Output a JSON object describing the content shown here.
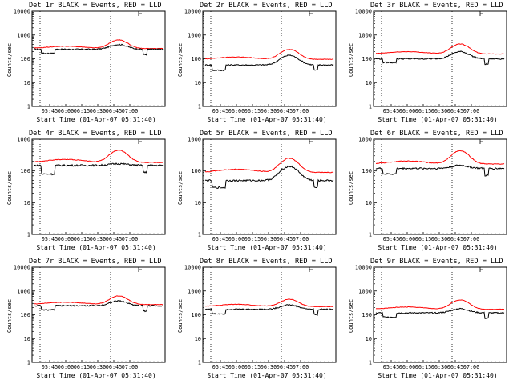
{
  "colors": {
    "events": "#000000",
    "lld": "#ff0000",
    "frame": "#000000",
    "background": "#ffffff"
  },
  "chart_data": [
    {
      "type": "line",
      "title": "Det 1r BLACK = Events, RED = LLD",
      "xlabel": "Start Time (01-Apr-07 05:31:40)",
      "ylabel": "Counts/sec",
      "yscale": "log",
      "ylim": [
        1,
        10000
      ],
      "yticks": [
        1,
        10,
        100,
        1000,
        10000
      ],
      "yticklabels": [
        "1",
        "10",
        "100",
        "1000",
        "10000"
      ],
      "xticklabels": [
        "05:45",
        "06:00",
        "06:15",
        "06:30",
        "06:45",
        "07:00"
      ],
      "events_plateau": 170,
      "events_base": 250,
      "events_peak": 400,
      "lld_base": 270,
      "lld_peak": 620
    },
    {
      "type": "line",
      "title": "Det 2r BLACK = Events, RED = LLD",
      "xlabel": "Start Time (01-Apr-07 05:31:40)",
      "ylabel": "Counts/sec",
      "yscale": "log",
      "ylim": [
        1,
        10000
      ],
      "yticks": [
        1,
        10,
        100,
        1000,
        10000
      ],
      "yticklabels": [
        "1",
        "10",
        "100",
        "1000",
        "10000"
      ],
      "xticklabels": [
        "05:45",
        "06:00",
        "06:15",
        "06:30",
        "06:45",
        "07:00"
      ],
      "events_plateau": 33,
      "events_base": 55,
      "events_peak": 140,
      "lld_base": 95,
      "lld_peak": 250
    },
    {
      "type": "line",
      "title": "Det 3r BLACK = Events, RED = LLD",
      "xlabel": "Start Time (01-Apr-07 05:31:40)",
      "ylabel": "Counts/sec",
      "yscale": "log",
      "ylim": [
        1,
        10000
      ],
      "yticks": [
        1,
        10,
        100,
        1000,
        10000
      ],
      "yticklabels": [
        "1",
        "10",
        "100",
        "1000",
        "10000"
      ],
      "xticklabels": [
        "05:45",
        "06:00",
        "06:15",
        "06:30",
        "06:45",
        "07:00"
      ],
      "events_plateau": 70,
      "events_base": 100,
      "events_peak": 200,
      "lld_base": 160,
      "lld_peak": 420
    },
    {
      "type": "line",
      "title": "Det 4r BLACK = Events, RED = LLD",
      "xlabel": "Start Time (01-Apr-07 05:31:40)",
      "ylabel": "Counts/sec",
      "yscale": "log",
      "ylim": [
        1,
        1000
      ],
      "yticks": [
        1,
        10,
        100,
        1000
      ],
      "yticklabels": [
        "1",
        "10",
        "100",
        "1000"
      ],
      "xticklabels": [
        "05:45",
        "06:00",
        "06:15",
        "06:30",
        "06:45",
        "07:00"
      ],
      "events_plateau": 80,
      "events_base": 150,
      "events_peak": 170,
      "lld_base": 185,
      "lld_peak": 450
    },
    {
      "type": "line",
      "title": "Det 5r BLACK = Events, RED = LLD",
      "xlabel": "Start Time (01-Apr-07 05:31:40)",
      "ylabel": "Counts/sec",
      "yscale": "log",
      "ylim": [
        1,
        1000
      ],
      "yticks": [
        1,
        10,
        100,
        1000
      ],
      "yticklabels": [
        "1",
        "10",
        "100",
        "1000"
      ],
      "xticklabels": [
        "05:45",
        "06:00",
        "06:15",
        "06:30",
        "06:45",
        "07:00"
      ],
      "events_plateau": 30,
      "events_base": 50,
      "events_peak": 140,
      "lld_base": 90,
      "lld_peak": 250
    },
    {
      "type": "line",
      "title": "Det 6r BLACK = Events, RED = LLD",
      "xlabel": "Start Time (01-Apr-07 05:31:40)",
      "ylabel": "Counts/sec",
      "yscale": "log",
      "ylim": [
        1,
        1000
      ],
      "yticks": [
        1,
        10,
        100,
        1000
      ],
      "yticklabels": [
        "1",
        "10",
        "100",
        "1000"
      ],
      "xticklabels": [
        "05:45",
        "06:00",
        "06:15",
        "06:30",
        "06:45",
        "07:00"
      ],
      "events_plateau": 80,
      "events_base": 120,
      "events_peak": 150,
      "lld_base": 165,
      "lld_peak": 430
    },
    {
      "type": "line",
      "title": "Det 7r BLACK = Events, RED = LLD",
      "xlabel": "Start Time (01-Apr-07 05:31:40)",
      "ylabel": "Counts/sec",
      "yscale": "log",
      "ylim": [
        1,
        10000
      ],
      "yticks": [
        1,
        10,
        100,
        1000,
        10000
      ],
      "yticklabels": [
        "1",
        "10",
        "100",
        "1000",
        "10000"
      ],
      "xticklabels": [
        "05:45",
        "06:00",
        "06:15",
        "06:30",
        "06:45",
        "07:00"
      ],
      "events_plateau": 160,
      "events_base": 240,
      "events_peak": 380,
      "lld_base": 270,
      "lld_peak": 620
    },
    {
      "type": "line",
      "title": "Det 8r BLACK = Events, RED = LLD",
      "xlabel": "Start Time (01-Apr-07 05:31:40)",
      "ylabel": "Counts/sec",
      "yscale": "log",
      "ylim": [
        1,
        10000
      ],
      "yticks": [
        1,
        10,
        100,
        1000,
        10000
      ],
      "yticklabels": [
        "1",
        "10",
        "100",
        "1000",
        "10000"
      ],
      "xticklabels": [
        "05:45",
        "06:00",
        "06:15",
        "06:30",
        "06:45",
        "07:00"
      ],
      "events_plateau": 110,
      "events_base": 170,
      "events_peak": 260,
      "lld_base": 220,
      "lld_peak": 450
    },
    {
      "type": "line",
      "title": "Det 9r BLACK = Events, RED = LLD",
      "xlabel": "Start Time (01-Apr-07 05:31:40)",
      "ylabel": "Counts/sec",
      "yscale": "log",
      "ylim": [
        1,
        10000
      ],
      "yticks": [
        1,
        10,
        100,
        1000,
        10000
      ],
      "yticklabels": [
        "1",
        "10",
        "100",
        "1000",
        "10000"
      ],
      "xticklabels": [
        "05:45",
        "06:00",
        "06:15",
        "06:30",
        "06:45",
        "07:00"
      ],
      "events_plateau": 80,
      "events_base": 120,
      "events_peak": 180,
      "lld_base": 170,
      "lld_peak": 420
    }
  ]
}
